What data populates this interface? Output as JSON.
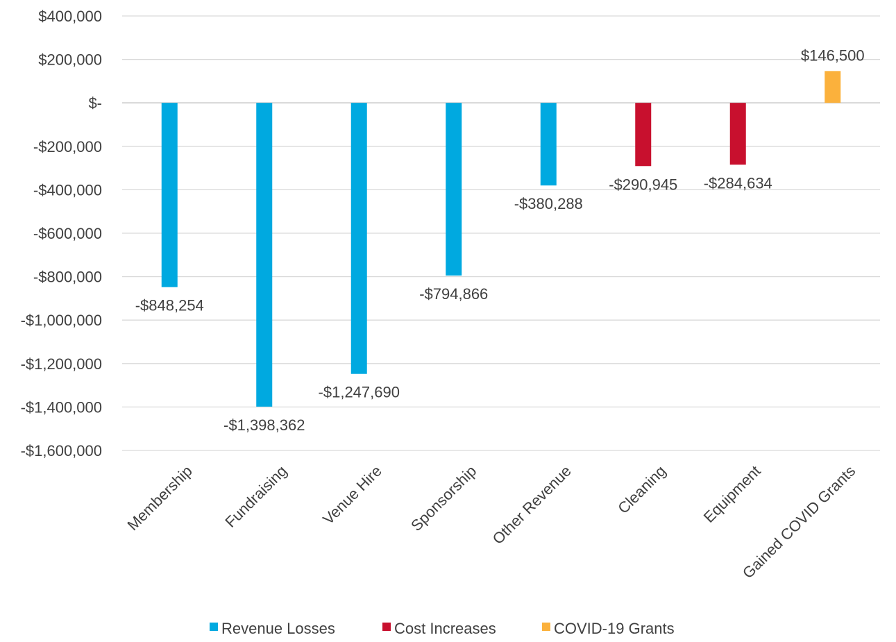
{
  "chart_data": {
    "type": "bar",
    "title": "",
    "xlabel": "",
    "ylabel": "",
    "categories": [
      "Membership",
      "Fundraising",
      "Venue Hire",
      "Sponsorship",
      "Other Revenue",
      "Cleaning",
      "Equipment",
      "Gained COVID Grants"
    ],
    "values": [
      -848254,
      -1398362,
      -1247690,
      -794866,
      -380288,
      -290945,
      -284634,
      146500
    ],
    "data_labels": [
      "-$848,254",
      "-$1,398,362",
      "-$1,247,690",
      "-$794,866",
      "-$380,288",
      "-$290,945",
      "-$284,634",
      "$146,500"
    ],
    "bar_series": [
      "Revenue Losses",
      "Revenue Losses",
      "Revenue Losses",
      "Revenue Losses",
      "Revenue Losses",
      "Cost Increases",
      "Cost Increases",
      "COVID-19 Grants"
    ],
    "series": [
      {
        "name": "Revenue Losses",
        "color": "#00A9E0"
      },
      {
        "name": "Cost Increases",
        "color": "#C8102E"
      },
      {
        "name": "COVID-19 Grants",
        "color": "#FBB13C"
      }
    ],
    "ylim": [
      -1600000,
      400000
    ],
    "yticks": [
      400000,
      200000,
      0,
      -200000,
      -400000,
      -600000,
      -800000,
      -1000000,
      -1200000,
      -1400000,
      -1600000
    ],
    "ytick_labels": [
      "$400,000",
      "$200,000",
      "$-",
      "-$200,000",
      "-$400,000",
      "-$600,000",
      "-$800,000",
      "-$1,000,000",
      "-$1,200,000",
      "-$1,400,000",
      "-$1,600,000"
    ],
    "grid": true,
    "legend_position": "bottom"
  }
}
